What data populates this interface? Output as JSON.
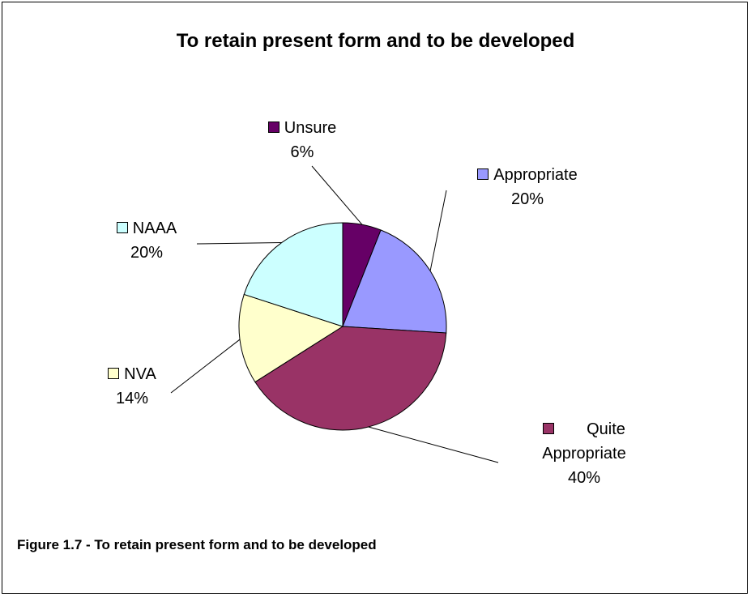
{
  "chart_data": {
    "type": "pie",
    "title": "To retain present form and to be developed",
    "slices": [
      {
        "label": "Unsure",
        "percent_label": "6%",
        "value": 6,
        "color": "#660066"
      },
      {
        "label": "Appropriate",
        "percent_label": "20%",
        "value": 20,
        "color": "#9999FF"
      },
      {
        "label": "Quite Appropriate",
        "percent_label": "40%",
        "value": 40,
        "color": "#993366"
      },
      {
        "label": "NVA",
        "percent_label": "14%",
        "value": 14,
        "color": "#FFFFCC"
      },
      {
        "label": "NAAA",
        "percent_label": "20%",
        "value": 20,
        "color": "#CCFFFF"
      }
    ],
    "legend": "none",
    "caption": "Figure 1.7 - To retain present form and to be developed"
  }
}
